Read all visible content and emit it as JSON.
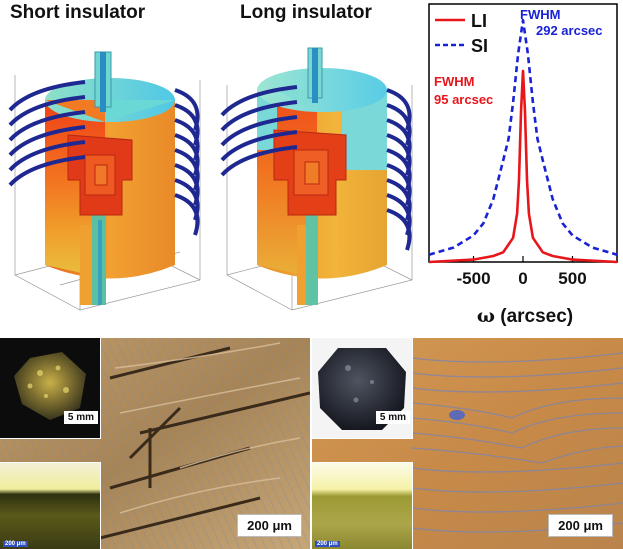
{
  "top_left": {
    "short_title": "Short insulator",
    "long_title": "Long insulator"
  },
  "chart_data": {
    "type": "line",
    "xlabel_symbol": "ω",
    "xlabel_unit": "arcsec",
    "x_ticks": [
      "-500",
      "0",
      "500"
    ],
    "xlim": [
      -950,
      950
    ],
    "ylim": [
      0,
      1.05
    ],
    "legend": {
      "placement": "top-left",
      "entries": [
        "LI",
        "SI"
      ]
    },
    "annotations": [
      {
        "label": "FWHM",
        "value": "95 arcsec",
        "color": "#e8161b"
      },
      {
        "label": "FWHM",
        "value": "292 arcsec",
        "color": "#1a22d6"
      }
    ],
    "series": [
      {
        "name": "LI",
        "color": "#e8161b",
        "style": "solid",
        "x": [
          -950,
          -500,
          -300,
          -200,
          -100,
          -60,
          -40,
          -20,
          0,
          20,
          40,
          60,
          100,
          200,
          300,
          500,
          950
        ],
        "y": [
          0.0,
          0.01,
          0.025,
          0.04,
          0.1,
          0.2,
          0.34,
          0.62,
          0.79,
          0.62,
          0.34,
          0.2,
          0.1,
          0.04,
          0.025,
          0.01,
          0.0
        ]
      },
      {
        "name": "SI",
        "color": "#1a22d6",
        "style": "dashed",
        "x": [
          -950,
          -700,
          -500,
          -400,
          -300,
          -200,
          -146,
          -100,
          -50,
          0,
          50,
          100,
          146,
          200,
          300,
          400,
          500,
          700,
          950
        ],
        "y": [
          0.03,
          0.06,
          0.11,
          0.16,
          0.26,
          0.42,
          0.51,
          0.66,
          0.86,
          1.0,
          0.86,
          0.66,
          0.51,
          0.42,
          0.26,
          0.16,
          0.11,
          0.06,
          0.03
        ]
      }
    ]
  },
  "bottom_left": {
    "inset_scale": "5 mm",
    "main_scale": "200 μm",
    "tiny_scale": "200 μm"
  },
  "bottom_right": {
    "inset_scale": "5 mm",
    "main_scale": "200 μm",
    "tiny_scale": "200 μm"
  }
}
